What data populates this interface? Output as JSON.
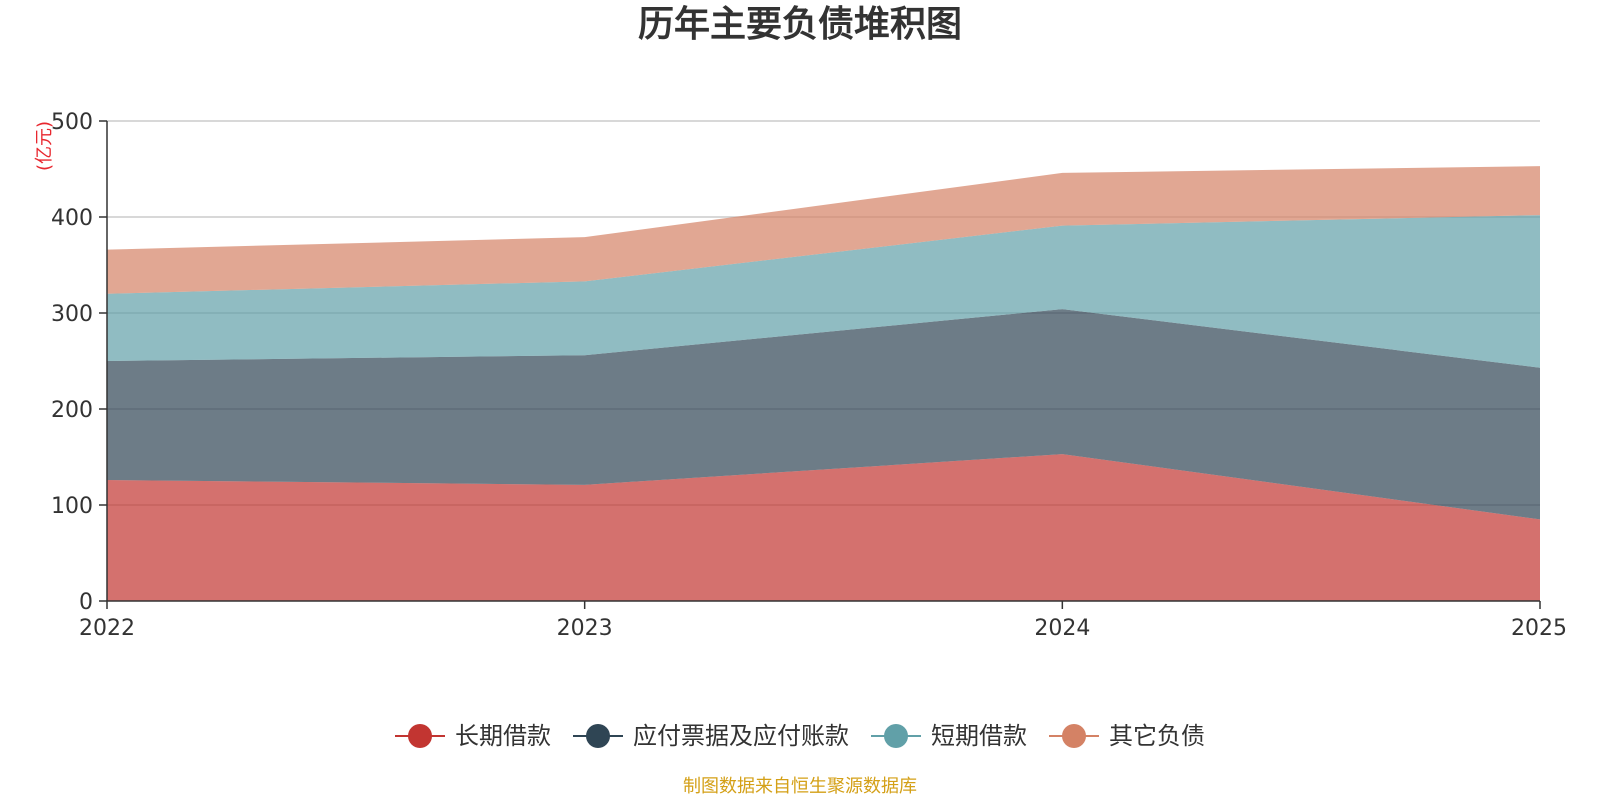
{
  "chart_data": {
    "type": "area",
    "stacked": true,
    "title": "历年主要负债堆积图",
    "ylabel": "(亿元)",
    "xlabel": "",
    "categories": [
      "2022",
      "2023",
      "2024",
      "2025"
    ],
    "ylim": [
      0,
      500
    ],
    "yticks": [
      0,
      100,
      200,
      300,
      400,
      500
    ],
    "series": [
      {
        "name": "长期借款",
        "color": "#c23531",
        "values": [
          126,
          121,
          153,
          85
        ]
      },
      {
        "name": "应付票据及应付账款",
        "color": "#2f4554",
        "values": [
          124,
          135,
          151,
          158
        ]
      },
      {
        "name": "短期借款",
        "color": "#61a0a8",
        "values": [
          70,
          77,
          87,
          159
        ]
      },
      {
        "name": "其它负债",
        "color": "#d48265",
        "values": [
          46,
          46,
          55,
          51
        ]
      }
    ],
    "legend_position": "bottom-center",
    "grid": true
  },
  "footer": {
    "source": "制图数据来自恒生聚源数据库"
  }
}
